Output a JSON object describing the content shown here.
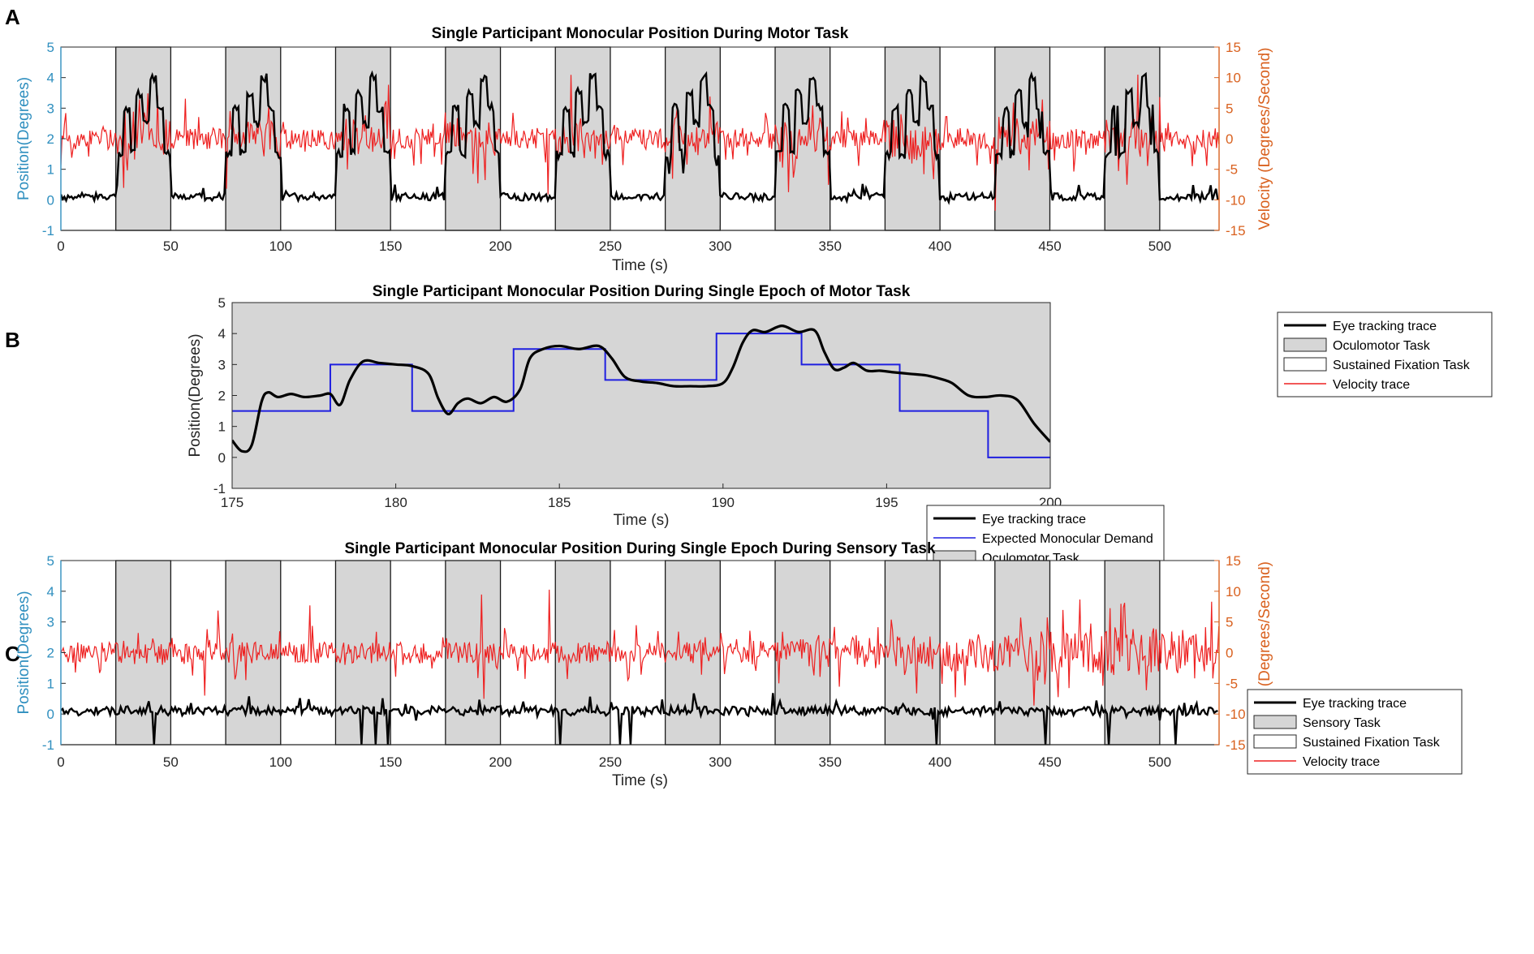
{
  "colors": {
    "position_axis": "#2f8fbf",
    "velocity_axis": "#d9611f",
    "eye_trace": "#000000",
    "velocity_trace": "#ee2020",
    "expected_demand": "#1f1fe0",
    "task_shading": "#d6d6d6"
  },
  "chart_data": [
    {
      "panel": "A",
      "type": "line",
      "title": "Single Participant Monocular Position During Motor Task",
      "xlabel": "Time (s)",
      "ylabel": "Position(Degrees)",
      "y2label": "Velocity (Degrees/Second)",
      "xlim": [
        0,
        527
      ],
      "ylim": [
        -1,
        5
      ],
      "y2lim": [
        -15,
        15
      ],
      "xticks": [
        "0",
        "50",
        "100",
        "150",
        "200",
        "250",
        "300",
        "350",
        "400",
        "450",
        "500"
      ],
      "yticks": [
        "-1",
        "0",
        "1",
        "2",
        "3",
        "4",
        "5"
      ],
      "y2ticks": [
        "-15",
        "-10",
        "-5",
        "0",
        "5",
        "10",
        "15"
      ],
      "task_blocks": [
        [
          25,
          50
        ],
        [
          75,
          100
        ],
        [
          125,
          150
        ],
        [
          175,
          200
        ],
        [
          225,
          250
        ],
        [
          275,
          300
        ],
        [
          325,
          350
        ],
        [
          375,
          400
        ],
        [
          425,
          450
        ],
        [
          475,
          500
        ]
      ],
      "legend": {
        "position": "bottom-right outside",
        "entries": [
          "Eye tracking trace",
          "Oculomotor Task",
          "Sustained Fixation Task",
          "Velocity trace"
        ]
      },
      "series": [
        {
          "name": "Eye tracking trace",
          "axis": "left",
          "baseline": 0.1,
          "task_profile": [
            1.5,
            3.0,
            1.5,
            3.5,
            2.5,
            4.0,
            3.0,
            1.5
          ],
          "noise": 0.25
        },
        {
          "name": "Velocity trace",
          "axis": "right",
          "baseline": 0,
          "amplitude": 2.5,
          "task_amplitude": 6
        }
      ]
    },
    {
      "panel": "B",
      "type": "line",
      "title": "Single Participant Monocular Position During Single Epoch of Motor Task",
      "xlabel": "Time (s)",
      "ylabel": "Position(Degrees)",
      "xlim": [
        175,
        200
      ],
      "ylim": [
        -1,
        5
      ],
      "xticks": [
        "175",
        "180",
        "185",
        "190",
        "195",
        "200"
      ],
      "yticks": [
        "-1",
        "0",
        "1",
        "2",
        "3",
        "4",
        "5"
      ],
      "task_blocks": [
        [
          175,
          200
        ]
      ],
      "legend": {
        "position": "lower-right inside",
        "entries": [
          "Eye tracking trace",
          "Expected Monocular Demand",
          "Oculomotor Task"
        ]
      },
      "series": [
        {
          "name": "Expected Monocular Demand",
          "steps": [
            [
              175,
              1.5
            ],
            [
              178,
              3.0
            ],
            [
              180.5,
              1.5
            ],
            [
              183.6,
              3.5
            ],
            [
              186.4,
              2.5
            ],
            [
              189.8,
              4.0
            ],
            [
              192.4,
              3.0
            ],
            [
              195.4,
              1.5
            ],
            [
              198.1,
              0.0
            ],
            [
              200,
              0.0
            ]
          ]
        },
        {
          "name": "Eye tracking trace",
          "x": [
            175,
            175.3,
            175.6,
            175.9,
            176.1,
            176.4,
            176.8,
            177.2,
            177.7,
            178.0,
            178.3,
            178.6,
            179.0,
            179.5,
            180.0,
            180.5,
            181.0,
            181.3,
            181.6,
            181.9,
            182.2,
            182.6,
            183.0,
            183.4,
            183.8,
            184.1,
            184.5,
            185.0,
            185.6,
            186.2,
            186.6,
            187.0,
            187.5,
            188.0,
            188.5,
            189.0,
            189.5,
            190.0,
            190.3,
            190.6,
            190.9,
            191.3,
            191.8,
            192.3,
            192.8,
            193.1,
            193.4,
            193.7,
            194.0,
            194.4,
            194.8,
            195.2,
            195.7,
            196.2,
            196.6,
            197.0,
            197.5,
            198.0,
            198.5,
            199.0,
            199.5,
            200.0
          ],
          "y": [
            0.55,
            0.2,
            0.4,
            1.8,
            2.1,
            1.95,
            2.05,
            1.95,
            2.0,
            2.05,
            1.7,
            2.5,
            3.1,
            3.05,
            3.0,
            2.95,
            2.7,
            1.9,
            1.4,
            1.75,
            1.9,
            1.75,
            1.95,
            1.8,
            2.2,
            3.2,
            3.5,
            3.6,
            3.5,
            3.6,
            3.2,
            2.6,
            2.45,
            2.4,
            2.3,
            2.3,
            2.3,
            2.4,
            2.9,
            3.7,
            4.1,
            4.05,
            4.25,
            4.05,
            4.1,
            3.4,
            2.85,
            2.9,
            3.05,
            2.8,
            2.8,
            2.75,
            2.7,
            2.65,
            2.55,
            2.4,
            2.0,
            1.95,
            2.0,
            1.85,
            1.1,
            0.5
          ]
        }
      ]
    },
    {
      "panel": "C",
      "type": "line",
      "title": "Single Participant Monocular Position During Single Epoch During Sensory Task",
      "xlabel": "Time (s)",
      "ylabel": "Position(Degrees)",
      "y2label": "Velocity (Degrees/Second)",
      "xlim": [
        0,
        527
      ],
      "ylim": [
        -1,
        5
      ],
      "y2lim": [
        -15,
        15
      ],
      "xticks": [
        "0",
        "50",
        "100",
        "150",
        "200",
        "250",
        "300",
        "350",
        "400",
        "450",
        "500"
      ],
      "yticks": [
        "-1",
        "0",
        "1",
        "2",
        "3",
        "4",
        "5"
      ],
      "y2ticks": [
        "-15",
        "-10",
        "-5",
        "0",
        "5",
        "10",
        "15"
      ],
      "task_blocks": [
        [
          25,
          50
        ],
        [
          75,
          100
        ],
        [
          125,
          150
        ],
        [
          175,
          200
        ],
        [
          225,
          250
        ],
        [
          275,
          300
        ],
        [
          325,
          350
        ],
        [
          375,
          400
        ],
        [
          425,
          450
        ],
        [
          475,
          500
        ]
      ],
      "legend": {
        "position": "top-right inside",
        "entries": [
          "Eye tracking trace",
          "Sensory Task",
          "Sustained Fixation Task",
          "Velocity trace"
        ]
      },
      "series": [
        {
          "name": "Eye tracking trace",
          "axis": "left",
          "baseline": 0.1,
          "noise": 0.3
        },
        {
          "name": "Velocity trace",
          "axis": "right",
          "baseline": 0,
          "amplitude": 2.5
        }
      ]
    }
  ]
}
